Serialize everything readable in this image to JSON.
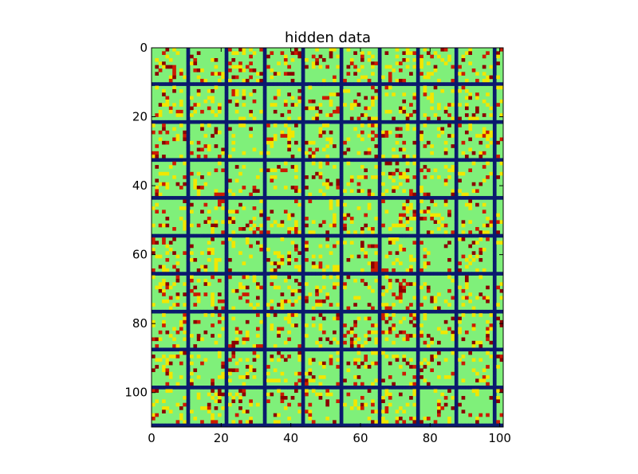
{
  "chart_data": {
    "type": "heatmap",
    "title": "hidden data",
    "xlabel": "",
    "ylabel": "",
    "x_range": [
      0,
      101
    ],
    "y_range": [
      0,
      110
    ],
    "y_inverted": true,
    "x_ticks": [
      0,
      20,
      40,
      60,
      80,
      100
    ],
    "y_ticks": [
      0,
      20,
      40,
      60,
      80,
      100
    ],
    "x_tick_labels": [
      "0",
      "20",
      "40",
      "60",
      "80",
      "100"
    ],
    "y_tick_labels": [
      "0",
      "20",
      "40",
      "60",
      "80",
      "100"
    ],
    "grid": {
      "tiles_x": 9,
      "tiles_y": 10,
      "tile_size": 10,
      "border_size": 1,
      "visible_partial_tile_columns": 0.2
    },
    "colormap": "jet",
    "colors": {
      "border": "#0a1a6e",
      "background": "#7ff07a",
      "high": "#8b0000",
      "mid_high": "#cc1a00",
      "mid": "#f2e600",
      "low": "#7ff07a"
    },
    "value_levels": [
      0.0,
      0.55,
      0.8,
      1.0
    ],
    "random_seed": 7
  }
}
